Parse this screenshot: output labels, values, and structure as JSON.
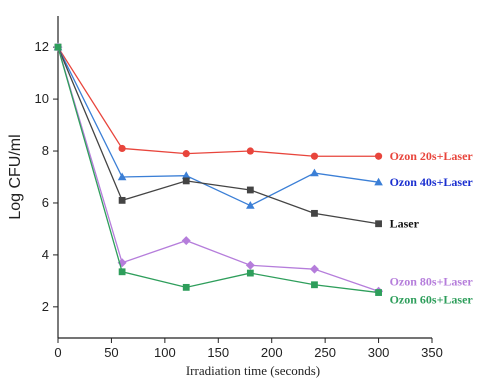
{
  "chart_data": {
    "type": "line",
    "xlabel": "Irradiation time (seconds)",
    "ylabel": "Log CFU/ml",
    "xlim": [
      0,
      350
    ],
    "ylim": [
      0.8,
      13.2
    ],
    "xticks": [
      "0",
      "50",
      "100",
      "150",
      "200",
      "250",
      "300",
      "350"
    ],
    "yticks": [
      "2",
      "4",
      "6",
      "8",
      "10",
      "12"
    ],
    "xtick_values": [
      0,
      50,
      100,
      150,
      200,
      250,
      300,
      350
    ],
    "ytick_values": [
      2,
      4,
      6,
      8,
      10,
      12
    ],
    "grid": false,
    "x": [
      0,
      60,
      120,
      180,
      240,
      300
    ],
    "series": [
      {
        "name": "Ozon 20s+Laser",
        "color": "#e8453c",
        "marker": "circle",
        "values": [
          12.0,
          8.1,
          7.9,
          8.0,
          7.8,
          7.8
        ]
      },
      {
        "name": "Ozon 40s+Laser",
        "color": "#3b7fd6",
        "marker": "triangle",
        "values": [
          12.0,
          7.0,
          7.05,
          5.9,
          7.15,
          6.8
        ]
      },
      {
        "name": "Laser",
        "color": "#444444",
        "marker": "square",
        "values": [
          12.0,
          6.1,
          6.85,
          6.5,
          5.6,
          5.2
        ]
      },
      {
        "name": "Ozon 80s+Laser",
        "color": "#b57ddb",
        "marker": "diamond",
        "values": [
          12.0,
          3.7,
          4.55,
          3.6,
          3.45,
          2.6
        ]
      },
      {
        "name": "Ozon 60s+Laser",
        "color": "#2e9e5b",
        "marker": "square",
        "values": [
          12.0,
          3.35,
          2.75,
          3.3,
          2.85,
          2.55
        ]
      }
    ],
    "label_colors": [
      "#e8453c",
      "#1a2fd0",
      "#111111",
      "#b57ddb",
      "#2e9e5b"
    ]
  }
}
